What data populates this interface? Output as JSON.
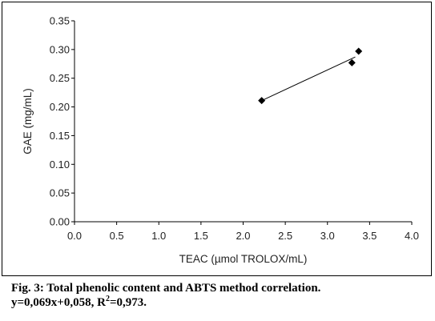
{
  "chart_data": {
    "type": "scatter",
    "xlabel": "TEAC (µmol TROLOX/mL)",
    "ylabel": "GAE (mg/mL)",
    "xlim": [
      0,
      4
    ],
    "ylim": [
      0,
      0.35
    ],
    "x_ticks": [
      "0.0",
      "0.5",
      "1.0",
      "1.5",
      "2.0",
      "2.5",
      "3.0",
      "3.5",
      "4.0"
    ],
    "y_ticks": [
      "0.00",
      "0.05",
      "0.10",
      "0.15",
      "0.20",
      "0.25",
      "0.30",
      "0.35"
    ],
    "grid": false,
    "marker": "diamond",
    "marker_color": "#000000",
    "points": [
      {
        "x": 2.22,
        "y": 0.211
      },
      {
        "x": 3.29,
        "y": 0.277
      },
      {
        "x": 3.37,
        "y": 0.297
      }
    ],
    "trendline": {
      "x": [
        2.22,
        3.33
      ],
      "y": [
        0.211,
        0.287
      ]
    }
  },
  "caption": {
    "line1": "Fig. 3: Total phenolic content and ABTS method correlation.",
    "line2_pre": "y=0,069x+0,058, R",
    "line2_sup": "2",
    "line2_post": "=0,973."
  }
}
